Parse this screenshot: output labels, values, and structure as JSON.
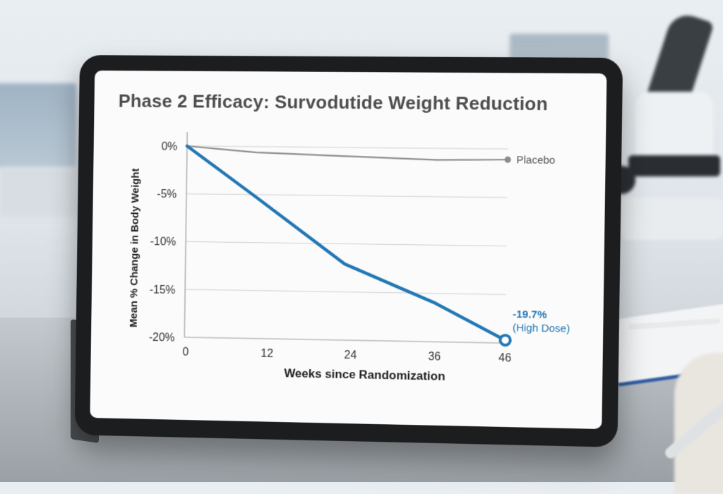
{
  "chart_data": {
    "type": "line",
    "title": "Phase 2 Efficacy: Survodutide Weight Reduction",
    "xlabel": "Weeks since Randomization",
    "ylabel": "Mean % Change in Body Weight",
    "x": [
      0,
      12,
      24,
      36,
      46
    ],
    "x_ticks": [
      "0",
      "12",
      "24",
      "36",
      "46"
    ],
    "y_ticks": [
      "0%",
      "-5%",
      "-10%",
      "-15%",
      "-20%"
    ],
    "xlim": [
      0,
      46
    ],
    "ylim": [
      -20,
      0
    ],
    "grid": true,
    "series": [
      {
        "name": "Placebo",
        "color": "#8c8c8c",
        "x": [
          0,
          10,
          23,
          36,
          46
        ],
        "values": [
          0,
          -0.6,
          -0.9,
          -1.2,
          -1.1
        ]
      },
      {
        "name": "High Dose",
        "color": "#2277b5",
        "x": [
          0,
          10,
          23,
          36,
          46
        ],
        "values": [
          0,
          -5.2,
          -12.1,
          -16.0,
          -19.7
        ]
      }
    ],
    "annotations": {
      "placebo_label": "Placebo",
      "high_dose_value": "-19.7%",
      "high_dose_label": "(High Dose)"
    }
  }
}
